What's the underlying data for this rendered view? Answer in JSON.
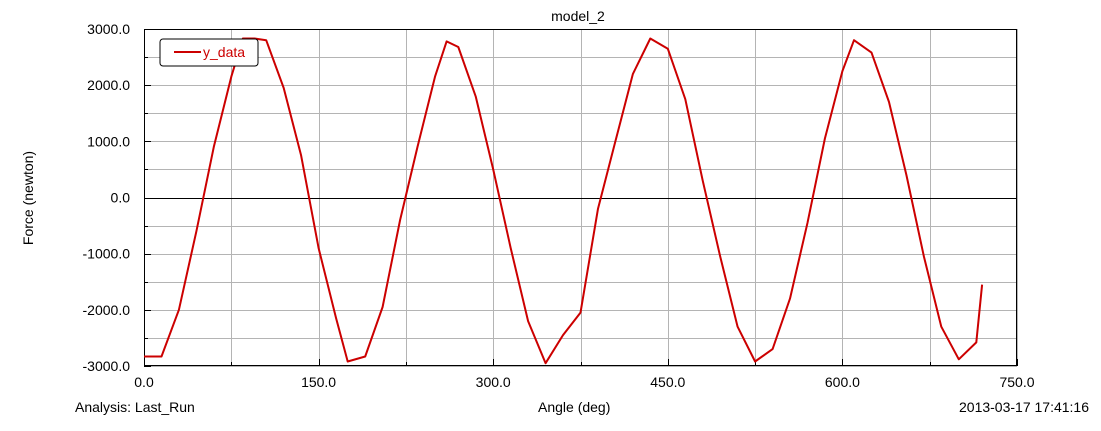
{
  "footer": {
    "analysis": "Analysis:  Last_Run",
    "timestamp": "2013-03-17 17:41:16"
  },
  "chart_data": {
    "type": "line",
    "title": "model_2",
    "xlabel": "Angle (deg)",
    "ylabel": "Force (newton)",
    "xlim": [
      0,
      750
    ],
    "ylim": [
      -3000,
      3000
    ],
    "x_ticks": [
      0,
      150,
      300,
      450,
      600,
      750
    ],
    "x_tick_labels": [
      "0.0",
      "150.0",
      "300.0",
      "450.0",
      "600.0",
      "750.0"
    ],
    "y_ticks": [
      -3000,
      -2000,
      -1000,
      0,
      1000,
      2000,
      3000
    ],
    "y_tick_labels": [
      "-3000.0",
      "-2000.0",
      "-1000.0",
      "0.0",
      "1000.0",
      "2000.0",
      "3000.0"
    ],
    "grid": true,
    "legend": "top-left",
    "colors": {
      "series": "#cc0000",
      "grid": "#b4b4b4",
      "axis": "#000000"
    },
    "series": [
      {
        "name": "y_data",
        "x": [
          0,
          15,
          30,
          45,
          60,
          75,
          85,
          95,
          105,
          120,
          135,
          150,
          165,
          175,
          190,
          205,
          220,
          235,
          250,
          260,
          270,
          285,
          300,
          315,
          330,
          345,
          360,
          375,
          390,
          405,
          420,
          435,
          450,
          465,
          480,
          495,
          510,
          525,
          540,
          555,
          570,
          585,
          600,
          610,
          625,
          640,
          655,
          670,
          685,
          700,
          715,
          720
        ],
        "y": [
          -2830,
          -2830,
          -2000,
          -600,
          900,
          2150,
          2830,
          2830,
          2800,
          1950,
          750,
          -900,
          -2150,
          -2920,
          -2830,
          -1950,
          -400,
          900,
          2150,
          2780,
          2680,
          1800,
          500,
          -900,
          -2200,
          -2950,
          -2450,
          -2050,
          -200,
          1000,
          2200,
          2830,
          2650,
          1750,
          300,
          -1050,
          -2300,
          -2920,
          -2700,
          -1800,
          -450,
          1050,
          2250,
          2800,
          2580,
          1700,
          400,
          -1050,
          -2300,
          -2880,
          -2580,
          -1550
        ]
      }
    ]
  }
}
